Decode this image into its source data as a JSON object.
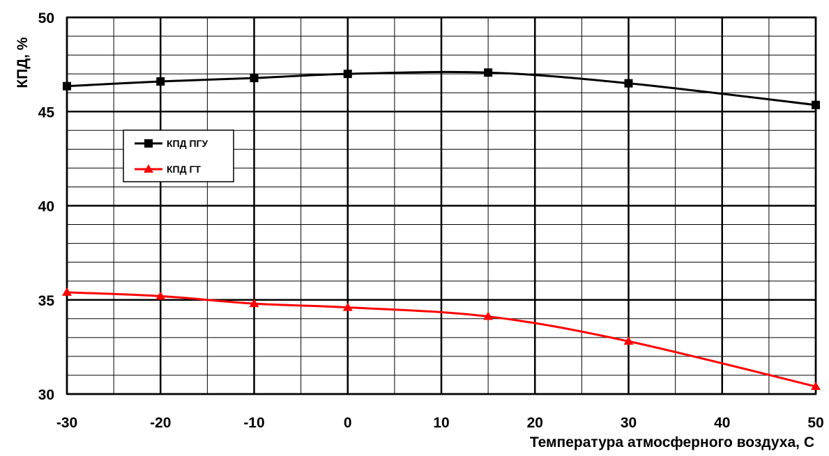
{
  "chart_data": {
    "type": "line",
    "xlabel": "Температура атмосферного воздуха,  С",
    "ylabel": "КПД, %",
    "xlim": [
      -30,
      50
    ],
    "ylim": [
      30,
      50
    ],
    "x_ticks": [
      "-30",
      "-20",
      "-10",
      "0",
      "10",
      "20",
      "30",
      "40",
      "50"
    ],
    "y_ticks": [
      "30",
      "35",
      "40",
      "45",
      "50"
    ],
    "grid": true,
    "legend_position": "upper-left",
    "series": [
      {
        "name": "КПД ПГУ",
        "color": "#000000",
        "marker": "square",
        "x": [
          -30,
          -20,
          -10,
          0,
          15,
          30,
          50
        ],
        "y": [
          46.35,
          46.6,
          46.78,
          47.0,
          47.07,
          46.5,
          45.35
        ]
      },
      {
        "name": "КПД ГТ",
        "color": "#ff0000",
        "marker": "triangle",
        "x": [
          -30,
          -20,
          -10,
          0,
          15,
          30,
          50
        ],
        "y": [
          35.4,
          35.2,
          34.8,
          34.6,
          34.12,
          32.8,
          30.4
        ]
      }
    ]
  }
}
